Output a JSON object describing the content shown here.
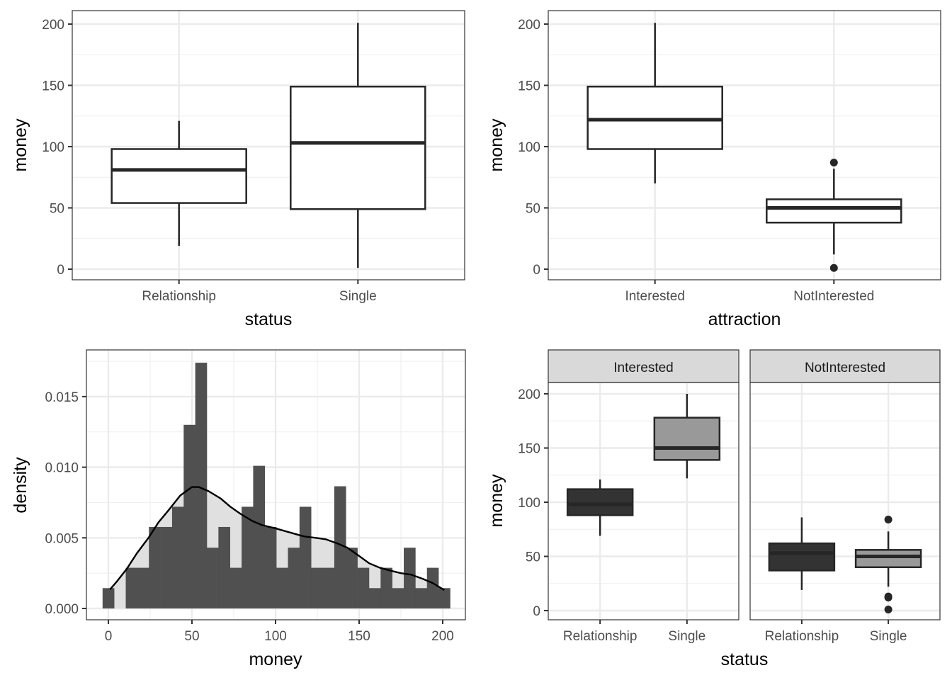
{
  "figure": {
    "panels": 4,
    "theme": "black-and-white grid",
    "colors": {
      "grid": "#ebebeb",
      "frame": "#333333",
      "box_line": "#262626",
      "hist_bar": "#4d4d4d",
      "density_fill": "#e0e0e0",
      "strip_fill": "#d9d9d9",
      "fill_relationship": "#333333",
      "fill_single": "#999999"
    }
  },
  "chart_data": [
    {
      "id": "status-boxplot",
      "type": "boxplot",
      "title": "",
      "xlabel": "status",
      "ylabel": "money",
      "categories": [
        "Relationship",
        "Single"
      ],
      "yticks": [
        0,
        50,
        100,
        150,
        200
      ],
      "ylim": [
        -8,
        210
      ],
      "grid": true,
      "boxes": [
        {
          "category": "Relationship",
          "whisker_low": 19,
          "q1": 54,
          "median": 81,
          "q3": 98,
          "whisker_high": 121,
          "outliers": []
        },
        {
          "category": "Single",
          "whisker_low": 1,
          "q1": 49,
          "median": 103,
          "q3": 149,
          "whisker_high": 201,
          "outliers": []
        }
      ]
    },
    {
      "id": "attraction-boxplot",
      "type": "boxplot",
      "title": "",
      "xlabel": "attraction",
      "ylabel": "money",
      "categories": [
        "Interested",
        "NotInterested"
      ],
      "yticks": [
        0,
        50,
        100,
        150,
        200
      ],
      "ylim": [
        -8,
        210
      ],
      "grid": true,
      "boxes": [
        {
          "category": "Interested",
          "whisker_low": 70,
          "q1": 98,
          "median": 122,
          "q3": 149,
          "whisker_high": 201,
          "outliers": []
        },
        {
          "category": "NotInterested",
          "whisker_low": 12,
          "q1": 38,
          "median": 50,
          "q3": 57,
          "whisker_high": 82,
          "outliers": [
            87,
            1
          ]
        }
      ]
    },
    {
      "id": "money-histogram",
      "type": "histogram",
      "title": "",
      "xlabel": "money",
      "ylabel": "density",
      "xticks": [
        0,
        50,
        100,
        150,
        200
      ],
      "yticks": [
        0.0,
        0.005,
        0.01,
        0.015
      ],
      "ytick_labels": [
        "0.000",
        "0.005",
        "0.010",
        "0.015"
      ],
      "xlim": [
        -13,
        208
      ],
      "ylim": [
        -0.0008,
        0.0182
      ],
      "grid": true,
      "bin_start": -3.47,
      "bin_width": 6.93,
      "bin_densities": [
        0.00144,
        0,
        0.00288,
        0.00288,
        0.00577,
        0.00577,
        0.0072,
        0.013,
        0.0174,
        0.0043,
        0.00577,
        0.00288,
        0.0072,
        0.0101,
        0.00577,
        0.00288,
        0.0043,
        0.0072,
        0.00288,
        0.00288,
        0.00865,
        0.0043,
        0.00288,
        0.00144,
        0.00288,
        0.00144,
        0.0043,
        0.00144,
        0.00288,
        0.00144
      ],
      "density_curve": {
        "x": [
          1,
          5,
          11,
          17,
          24,
          30,
          37,
          43,
          50,
          54,
          60,
          67,
          73,
          79,
          86,
          92,
          99,
          105,
          111,
          117,
          124,
          130,
          137,
          143,
          149,
          156,
          162,
          168,
          175,
          181,
          188,
          194,
          201
        ],
        "y": [
          0.00135,
          0.0019,
          0.0028,
          0.0039,
          0.005,
          0.0061,
          0.0071,
          0.008,
          0.0086,
          0.0086,
          0.0083,
          0.0078,
          0.0072,
          0.0067,
          0.0062,
          0.0059,
          0.0057,
          0.0055,
          0.0053,
          0.0051,
          0.005,
          0.0049,
          0.0046,
          0.0043,
          0.0038,
          0.0032,
          0.0029,
          0.0027,
          0.0025,
          0.0024,
          0.0021,
          0.0018,
          0.0013
        ]
      }
    },
    {
      "id": "faceted-boxplot",
      "type": "boxplot",
      "title": "",
      "xlabel": "status",
      "ylabel": "money",
      "facet_variable": "attraction",
      "yticks": [
        0,
        50,
        100,
        150,
        200
      ],
      "ylim": [
        -8,
        210
      ],
      "grid": true,
      "fill_legend": "none",
      "facets": [
        {
          "label": "Interested",
          "categories": [
            "Relationship",
            "Single"
          ],
          "boxes": [
            {
              "category": "Relationship",
              "whisker_low": 69,
              "q1": 88,
              "median": 98,
              "q3": 112,
              "whisker_high": 121,
              "outliers": []
            },
            {
              "category": "Single",
              "whisker_low": 122,
              "q1": 139,
              "median": 150,
              "q3": 178,
              "whisker_high": 200,
              "outliers": []
            }
          ]
        },
        {
          "label": "NotInterested",
          "categories": [
            "Relationship",
            "Single"
          ],
          "boxes": [
            {
              "category": "Relationship",
              "whisker_low": 19,
              "q1": 37,
              "median": 53,
              "q3": 62,
              "whisker_high": 86,
              "outliers": []
            },
            {
              "category": "Single",
              "whisker_low": 22,
              "q1": 40,
              "median": 50,
              "q3": 56,
              "whisker_high": 73,
              "outliers": [
                84,
                13,
                12,
                1
              ]
            }
          ]
        }
      ]
    }
  ]
}
